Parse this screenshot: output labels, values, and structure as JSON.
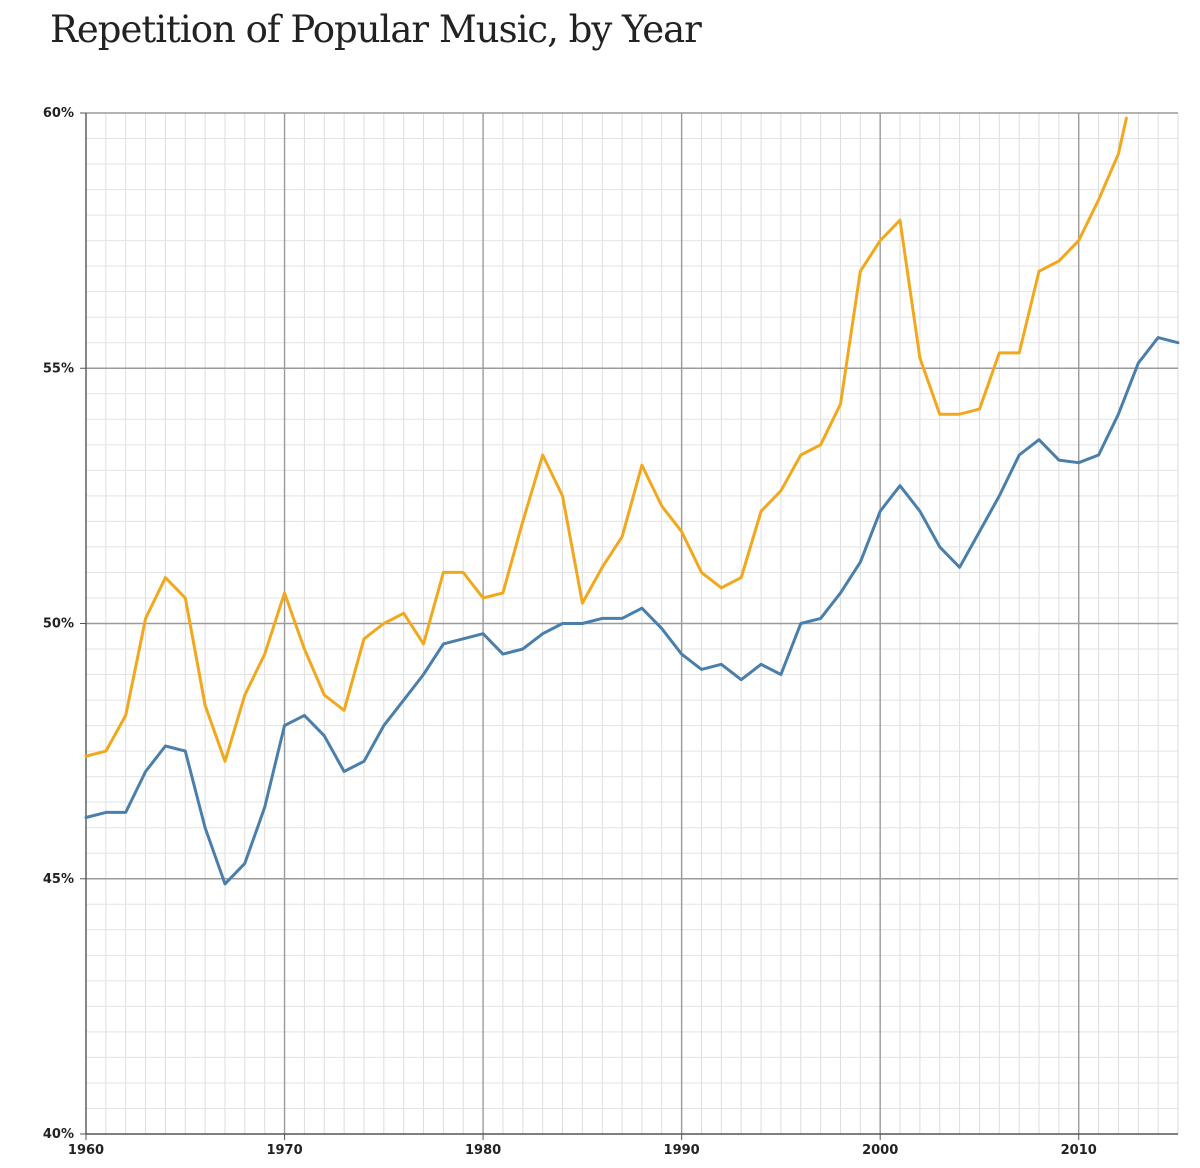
{
  "chart_data": {
    "type": "line",
    "title": "Repetition of Popular Music, by Year",
    "xlabel": "",
    "ylabel": "",
    "xlim": [
      1960,
      2015
    ],
    "ylim": [
      40,
      60
    ],
    "x_ticks": [
      {
        "value": 1960,
        "label": "1960"
      },
      {
        "value": 1970,
        "label": "1970"
      },
      {
        "value": 1980,
        "label": "1980"
      },
      {
        "value": 1990,
        "label": "1990"
      },
      {
        "value": 2000,
        "label": "2000"
      },
      {
        "value": 2010,
        "label": "2010"
      }
    ],
    "y_ticks": [
      {
        "value": 60,
        "label": "60%"
      },
      {
        "value": 55,
        "label": "55%"
      },
      {
        "value": 50,
        "label": "50%"
      },
      {
        "value": 45,
        "label": "45%"
      },
      {
        "value": 40,
        "label": "40%"
      }
    ],
    "grid": true,
    "series": [
      {
        "name": "orange-series",
        "color": "#F2A81D",
        "x": [
          1960,
          1961,
          1962,
          1963,
          1964,
          1965,
          1966,
          1967,
          1968,
          1969,
          1970,
          1971,
          1972,
          1973,
          1974,
          1975,
          1976,
          1977,
          1978,
          1979,
          1980,
          1981,
          1982,
          1983,
          1984,
          1985,
          1986,
          1987,
          1988,
          1989,
          1990,
          1991,
          1992,
          1993,
          1994,
          1995,
          1996,
          1997,
          1998,
          1999,
          2000,
          2001,
          2002,
          2003,
          2004,
          2005,
          2006,
          2007,
          2008,
          2009,
          2010,
          2011,
          2012,
          2012.4
        ],
        "values": [
          47.4,
          47.5,
          48.2,
          50.1,
          50.9,
          50.5,
          48.4,
          47.3,
          48.6,
          49.4,
          50.6,
          49.5,
          48.6,
          48.3,
          49.7,
          50.0,
          50.2,
          49.6,
          51.0,
          51.0,
          50.5,
          50.6,
          52.0,
          53.3,
          52.5,
          50.4,
          51.1,
          51.7,
          53.1,
          52.3,
          51.8,
          51.0,
          50.7,
          50.9,
          52.2,
          52.6,
          53.3,
          53.5,
          54.3,
          56.9,
          57.5,
          57.9,
          55.2,
          54.1,
          54.1,
          54.2,
          55.3,
          55.3,
          56.9,
          57.1,
          57.5,
          58.3,
          59.2,
          59.9
        ]
      },
      {
        "name": "blue-series",
        "color": "#4A7FAB",
        "x": [
          1960,
          1961,
          1962,
          1963,
          1964,
          1965,
          1966,
          1967,
          1968,
          1969,
          1970,
          1971,
          1972,
          1973,
          1974,
          1975,
          1976,
          1977,
          1978,
          1979,
          1980,
          1981,
          1982,
          1983,
          1984,
          1985,
          1986,
          1987,
          1988,
          1989,
          1990,
          1991,
          1992,
          1993,
          1994,
          1995,
          1996,
          1997,
          1998,
          1999,
          2000,
          2001,
          2002,
          2003,
          2004,
          2005,
          2006,
          2007,
          2008,
          2009,
          2010,
          2011,
          2012,
          2013,
          2014,
          2015
        ],
        "values": [
          46.2,
          46.3,
          46.3,
          47.1,
          47.6,
          47.5,
          46.0,
          44.9,
          45.3,
          46.4,
          48.0,
          48.2,
          47.8,
          47.1,
          47.3,
          48.0,
          48.5,
          49.0,
          49.6,
          49.7,
          49.8,
          49.4,
          49.5,
          49.8,
          50.0,
          50.0,
          50.1,
          50.1,
          50.3,
          49.9,
          49.4,
          49.1,
          49.2,
          48.9,
          49.2,
          49.0,
          50.0,
          50.1,
          50.6,
          51.2,
          52.2,
          52.7,
          52.2,
          51.5,
          51.1,
          51.8,
          52.5,
          53.3,
          53.6,
          53.2,
          53.15,
          53.3,
          54.1,
          55.1,
          55.6,
          55.5
        ]
      }
    ]
  }
}
